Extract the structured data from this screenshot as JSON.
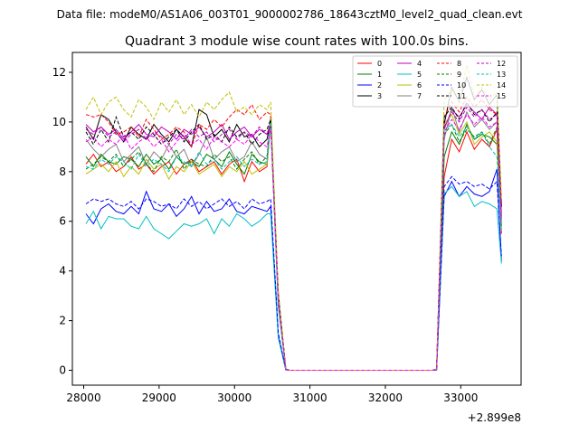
{
  "figure": {
    "suptitle": "Data file: modeM0/AS1A06_003T01_9000002786_18643cztM0_level2_quad_clean.evt"
  },
  "chart_data": {
    "type": "line",
    "title": "Quadrant 3 module wise count rates with 100.0s bins.",
    "xlabel": "",
    "ylabel": "",
    "offset_text": "+2.899e8",
    "xlim": [
      27850,
      33800
    ],
    "ylim": [
      -0.6,
      12.8
    ],
    "xticks": [
      28000,
      29000,
      30000,
      31000,
      32000,
      33000
    ],
    "xtick_labels": [
      "28000",
      "29000",
      "30000",
      "31000",
      "32000",
      "33000"
    ],
    "yticks": [
      0,
      2,
      4,
      6,
      8,
      10,
      12
    ],
    "ytick_labels": [
      "0",
      "2",
      "4",
      "6",
      "8",
      "10",
      "12"
    ],
    "grid": false,
    "legend_placement": "top-right",
    "legend_columns": 4,
    "x": [
      28030,
      28130,
      28230,
      28330,
      28430,
      28530,
      28630,
      28730,
      28830,
      28930,
      29030,
      29130,
      29230,
      29330,
      29430,
      29530,
      29630,
      29730,
      29830,
      29930,
      30030,
      30130,
      30230,
      30330,
      30430,
      30480,
      30580,
      30680,
      30730,
      30830,
      30930,
      31030,
      31130,
      31230,
      31330,
      31430,
      31530,
      31630,
      31730,
      31830,
      31930,
      32030,
      32130,
      32230,
      32330,
      32430,
      32530,
      32630,
      32680,
      32780,
      32880,
      32980,
      33080,
      33180,
      33280,
      33380,
      33480,
      33540
    ],
    "series": [
      {
        "name": "0",
        "color": "#ff0000",
        "dash": "solid",
        "values": [
          8.3,
          8.7,
          8.2,
          8.4,
          8.0,
          8.2,
          8.6,
          8.1,
          8.3,
          7.9,
          8.2,
          8.4,
          7.9,
          8.3,
          8.5,
          8.0,
          8.2,
          8.4,
          7.9,
          8.3,
          8.5,
          7.6,
          8.4,
          8.0,
          8.2,
          10.1,
          2.8,
          0.05,
          0,
          0,
          0,
          0,
          0,
          0,
          0,
          0,
          0,
          0,
          0,
          0,
          0,
          0,
          0,
          0,
          0,
          0,
          0,
          0,
          0.05,
          7.8,
          9.3,
          8.8,
          9.6,
          8.9,
          9.3,
          9.0,
          9.7,
          5.5
        ]
      },
      {
        "name": "1",
        "color": "#008000",
        "dash": "solid",
        "values": [
          8.6,
          8.2,
          8.7,
          8.4,
          8.3,
          8.6,
          8.5,
          8.2,
          8.7,
          8.3,
          8.5,
          8.1,
          8.6,
          8.3,
          8.4,
          8.2,
          8.7,
          8.5,
          8.2,
          8.8,
          8.3,
          7.9,
          8.7,
          8.4,
          8.3,
          10.0,
          2.6,
          0.05,
          0,
          0,
          0,
          0,
          0,
          0,
          0,
          0,
          0,
          0,
          0,
          0,
          0,
          0,
          0,
          0,
          0,
          0,
          0,
          0,
          0.05,
          8.6,
          9.6,
          9.1,
          9.9,
          9.3,
          9.5,
          9.4,
          9.1,
          5.8
        ]
      },
      {
        "name": "2",
        "color": "#0000ff",
        "dash": "solid",
        "values": [
          6.3,
          5.9,
          6.5,
          6.7,
          6.4,
          6.3,
          6.6,
          6.3,
          7.2,
          6.5,
          6.4,
          6.7,
          6.2,
          6.5,
          7.0,
          6.3,
          6.8,
          6.4,
          6.5,
          6.9,
          6.4,
          6.3,
          6.6,
          6.5,
          6.4,
          6.6,
          1.4,
          0.02,
          0,
          0,
          0,
          0,
          0,
          0,
          0,
          0,
          0,
          0,
          0,
          0,
          0,
          0,
          0,
          0,
          0,
          0,
          0,
          0,
          0.02,
          7.0,
          7.6,
          7.0,
          7.4,
          7.1,
          7.0,
          7.2,
          8.1,
          4.4
        ]
      },
      {
        "name": "3",
        "color": "#000000",
        "dash": "solid",
        "values": [
          9.8,
          9.3,
          10.3,
          10.1,
          9.6,
          9.2,
          9.8,
          9.5,
          9.3,
          9.9,
          9.5,
          9.2,
          9.7,
          9.4,
          9.0,
          10.5,
          10.3,
          9.4,
          9.7,
          9.2,
          9.9,
          9.4,
          9.5,
          9.0,
          9.3,
          10.0,
          3.1,
          0.05,
          0,
          0,
          0,
          0,
          0,
          0,
          0,
          0,
          0,
          0,
          0,
          0,
          0,
          0,
          0,
          0,
          0,
          0,
          0,
          0,
          0.05,
          9.9,
          11.4,
          10.8,
          11.8,
          10.9,
          11.3,
          10.7,
          11.1,
          6.6
        ]
      },
      {
        "name": "4",
        "color": "#bf00bf",
        "dash": "solid",
        "values": [
          9.9,
          9.6,
          9.8,
          9.5,
          9.7,
          9.3,
          9.6,
          9.9,
          9.5,
          9.4,
          9.8,
          9.6,
          9.3,
          9.7,
          9.5,
          9.8,
          9.4,
          9.6,
          9.9,
          9.3,
          9.6,
          9.8,
          9.4,
          9.7,
          9.5,
          10.0,
          3.0,
          0.05,
          0,
          0,
          0,
          0,
          0,
          0,
          0,
          0,
          0,
          0,
          0,
          0,
          0,
          0,
          0,
          0,
          0,
          0,
          0,
          0,
          0.05,
          9.7,
          10.5,
          10.2,
          10.7,
          10.4,
          10.1,
          10.6,
          10.3,
          6.3
        ]
      },
      {
        "name": "5",
        "color": "#00bfbf",
        "dash": "solid",
        "values": [
          5.9,
          6.4,
          5.7,
          6.2,
          6.1,
          6.1,
          5.8,
          5.7,
          6.2,
          5.7,
          5.5,
          5.3,
          5.6,
          5.9,
          5.8,
          5.9,
          6.1,
          5.5,
          6.1,
          5.8,
          6.3,
          6.1,
          5.8,
          6.0,
          6.3,
          6.3,
          1.3,
          0.02,
          0,
          0,
          0,
          0,
          0,
          0,
          0,
          0,
          0,
          0,
          0,
          0,
          0,
          0,
          0,
          0,
          0,
          0,
          0,
          0,
          0.02,
          7.1,
          7.4,
          7.0,
          7.2,
          6.6,
          6.8,
          6.7,
          6.5,
          4.3
        ]
      },
      {
        "name": "6",
        "color": "#bfbf00",
        "dash": "solid",
        "values": [
          7.9,
          8.1,
          8.3,
          8.0,
          8.4,
          7.8,
          8.2,
          7.9,
          8.5,
          8.1,
          8.3,
          7.7,
          8.2,
          8.0,
          8.4,
          7.9,
          8.1,
          8.3,
          7.8,
          8.2,
          8.0,
          8.4,
          7.9,
          8.1,
          8.3,
          10.1,
          2.7,
          0.05,
          0,
          0,
          0,
          0,
          0,
          0,
          0,
          0,
          0,
          0,
          0,
          0,
          0,
          0,
          0,
          0,
          0,
          0,
          0,
          0,
          0.05,
          9.9,
          10.3,
          9.5,
          10.0,
          9.1,
          9.4,
          9.6,
          9.2,
          5.9
        ]
      },
      {
        "name": "7",
        "color": "#808080",
        "dash": "solid",
        "values": [
          9.3,
          8.9,
          8.6,
          8.9,
          9.1,
          8.4,
          8.7,
          9.0,
          8.3,
          8.8,
          8.5,
          9.1,
          8.6,
          8.9,
          8.2,
          8.7,
          9.4,
          8.5,
          8.8,
          9.0,
          8.4,
          8.6,
          9.2,
          8.7,
          8.5,
          10.2,
          2.9,
          0.05,
          0,
          0,
          0,
          0,
          0,
          0,
          0,
          0,
          0,
          0,
          0,
          0,
          0,
          0,
          0,
          0,
          0,
          0,
          0,
          0,
          0.05,
          9.3,
          10.6,
          9.6,
          10.4,
          9.8,
          10.1,
          9.7,
          10.0,
          6.1
        ]
      },
      {
        "name": "8",
        "color": "#ff0000",
        "dash": "dashed",
        "values": [
          10.3,
          10.2,
          10.3,
          10.0,
          9.5,
          9.6,
          9.8,
          9.4,
          10.1,
          9.7,
          9.3,
          9.5,
          9.8,
          9.6,
          9.0,
          9.9,
          9.7,
          10.1,
          9.8,
          10.2,
          10.5,
          10.3,
          10.7,
          10.1,
          10.4,
          10.3,
          3.1,
          0.05,
          0,
          0,
          0,
          0,
          0,
          0,
          0,
          0,
          0,
          0,
          0,
          0,
          0,
          0,
          0,
          0,
          0,
          0,
          0,
          0,
          0.05,
          10.2,
          10.8,
          10.4,
          11.0,
          10.6,
          10.9,
          10.5,
          10.3,
          6.7
        ]
      },
      {
        "name": "9",
        "color": "#008000",
        "dash": "dashed",
        "values": [
          8.1,
          8.3,
          8.6,
          8.4,
          8.7,
          8.2,
          8.5,
          8.8,
          8.3,
          8.0,
          8.6,
          8.4,
          8.9,
          8.1,
          8.5,
          8.3,
          8.2,
          8.7,
          8.4,
          8.6,
          8.1,
          8.5,
          8.8,
          8.3,
          8.6,
          10.1,
          2.7,
          0.05,
          0,
          0,
          0,
          0,
          0,
          0,
          0,
          0,
          0,
          0,
          0,
          0,
          0,
          0,
          0,
          0,
          0,
          0,
          0,
          0,
          0.05,
          9.5,
          9.9,
          9.2,
          9.7,
          9.4,
          9.6,
          9.1,
          9.8,
          5.7
        ]
      },
      {
        "name": "10",
        "color": "#0000ff",
        "dash": "dashed",
        "values": [
          6.7,
          6.9,
          6.8,
          6.9,
          6.7,
          6.6,
          6.8,
          6.5,
          6.9,
          6.8,
          6.6,
          6.7,
          6.5,
          6.9,
          6.6,
          6.8,
          6.5,
          6.7,
          6.9,
          6.6,
          6.8,
          6.5,
          6.9,
          6.7,
          6.8,
          6.9,
          1.5,
          0.02,
          0,
          0,
          0,
          0,
          0,
          0,
          0,
          0,
          0,
          0,
          0,
          0,
          0,
          0,
          0,
          0,
          0,
          0,
          0,
          0,
          0.02,
          7.4,
          7.8,
          7.5,
          7.6,
          7.4,
          7.5,
          7.3,
          7.6,
          4.6
        ]
      },
      {
        "name": "11",
        "color": "#000000",
        "dash": "dashed",
        "values": [
          9.6,
          9.1,
          9.7,
          9.2,
          10.2,
          9.4,
          9.6,
          9.3,
          9.8,
          9.5,
          9.1,
          9.4,
          9.7,
          9.2,
          9.6,
          9.9,
          9.3,
          9.5,
          9.2,
          9.8,
          9.4,
          9.6,
          9.1,
          9.5,
          9.7,
          10.1,
          3.0,
          0.05,
          0,
          0,
          0,
          0,
          0,
          0,
          0,
          0,
          0,
          0,
          0,
          0,
          0,
          0,
          0,
          0,
          0,
          0,
          0,
          0,
          0.05,
          10.2,
          10.6,
          10.1,
          10.8,
          10.3,
          10.5,
          10.0,
          10.4,
          6.5
        ]
      },
      {
        "name": "12",
        "color": "#bf00bf",
        "dash": "dashed",
        "values": [
          9.7,
          9.5,
          9.8,
          9.4,
          9.6,
          9.2,
          9.5,
          9.7,
          9.3,
          9.6,
          9.4,
          9.1,
          9.5,
          9.3,
          9.7,
          9.4,
          9.6,
          9.2,
          9.5,
          9.7,
          9.3,
          9.6,
          9.4,
          9.8,
          9.5,
          9.9,
          2.9,
          0.05,
          0,
          0,
          0,
          0,
          0,
          0,
          0,
          0,
          0,
          0,
          0,
          0,
          0,
          0,
          0,
          0,
          0,
          0,
          0,
          0,
          0.05,
          9.8,
          10.4,
          10.0,
          10.6,
          10.2,
          10.5,
          10.1,
          10.3,
          6.2
        ]
      },
      {
        "name": "13",
        "color": "#00bfbf",
        "dash": "dashed",
        "values": [
          8.2,
          8.1,
          8.5,
          8.3,
          8.6,
          8.4,
          8.1,
          8.7,
          8.2,
          8.5,
          8.3,
          8.0,
          8.6,
          8.4,
          8.2,
          8.8,
          8.3,
          8.5,
          8.1,
          8.4,
          8.6,
          8.2,
          8.5,
          8.3,
          8.4,
          10.0,
          2.6,
          0.05,
          0,
          0,
          0,
          0,
          0,
          0,
          0,
          0,
          0,
          0,
          0,
          0,
          0,
          0,
          0,
          0,
          0,
          0,
          0,
          0,
          0.05,
          9.7,
          9.9,
          9.4,
          9.8,
          9.3,
          9.6,
          9.0,
          8.6,
          5.6
        ]
      },
      {
        "name": "14",
        "color": "#bfbf00",
        "dash": "dashed",
        "values": [
          10.5,
          11.0,
          10.3,
          10.8,
          11.0,
          10.5,
          10.2,
          10.9,
          10.6,
          10.1,
          10.8,
          10.4,
          10.9,
          10.3,
          10.7,
          10.2,
          10.8,
          10.5,
          10.9,
          11.2,
          10.4,
          10.6,
          10.3,
          10.7,
          10.5,
          10.8,
          3.2,
          0.05,
          0,
          0,
          0,
          0,
          0,
          0,
          0,
          0,
          0,
          0,
          0,
          0,
          0,
          0,
          0,
          0,
          0,
          0,
          0,
          0,
          0.05,
          10.9,
          11.3,
          10.8,
          12.3,
          11.0,
          11.4,
          10.9,
          11.2,
          6.9
        ]
      },
      {
        "name": "15",
        "color": "#ff00ff",
        "dash": "dashed",
        "values": [
          9.2,
          9.4,
          9.0,
          9.3,
          9.1,
          9.5,
          8.9,
          9.2,
          9.4,
          9.0,
          9.3,
          8.8,
          9.2,
          9.5,
          9.1,
          9.3,
          8.9,
          9.4,
          9.2,
          9.0,
          9.3,
          9.1,
          9.5,
          9.2,
          9.0,
          9.8,
          2.8,
          0.05,
          0,
          0,
          0,
          0,
          0,
          0,
          0,
          0,
          0,
          0,
          0,
          0,
          0,
          0,
          0,
          0,
          0,
          0,
          0,
          0,
          0.05,
          9.6,
          10.1,
          9.7,
          10.3,
          9.9,
          10.2,
          9.8,
          10.0,
          6.0
        ]
      }
    ]
  }
}
